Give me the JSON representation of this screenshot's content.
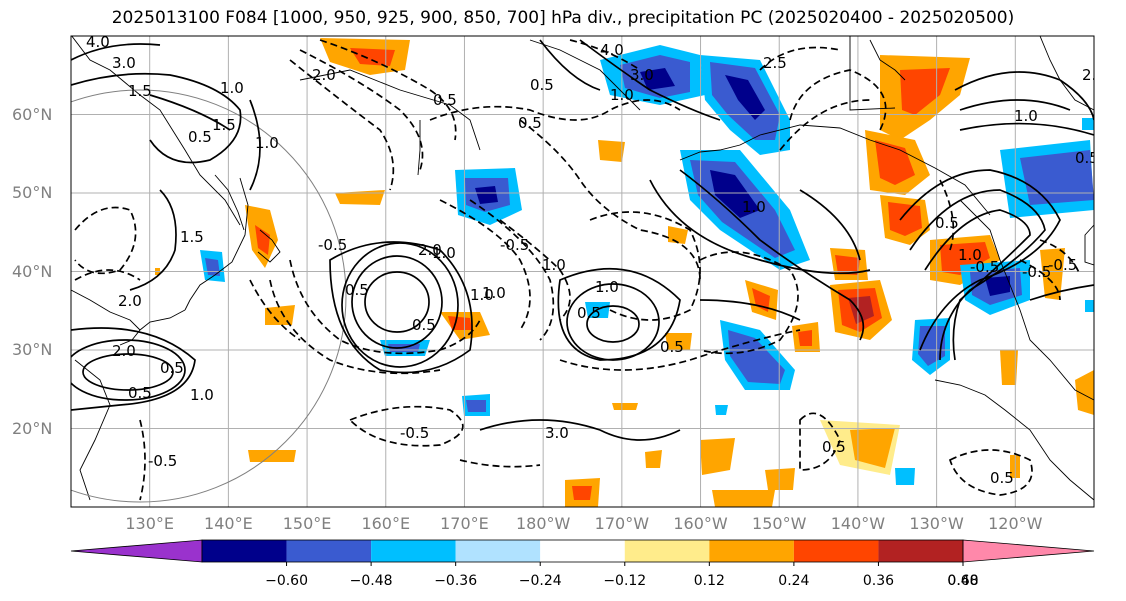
{
  "title": "2025013100 F084 [1000, 950, 925, 900, 850, 700] hPa div., precipitation PC (2025020400 - 2025020500)",
  "map": {
    "lon_range_deg_east": [
      120,
      250
    ],
    "lat_range_deg": [
      10,
      70
    ],
    "lat_labels": [
      "20°N",
      "30°N",
      "40°N",
      "50°N",
      "60°N"
    ],
    "lon_labels": [
      "130°E",
      "140°E",
      "150°E",
      "160°E",
      "170°E",
      "180°W",
      "170°W",
      "160°W",
      "150°W",
      "140°W",
      "130°W",
      "120°W"
    ],
    "gridlines": true,
    "contour_labels": [
      "4.0",
      "3.0",
      "1.5",
      "2.0",
      "1.0",
      "0.5",
      "1.5",
      "1.0",
      "0.5",
      "0.5",
      "0.5",
      "3.0",
      "4.0",
      "1.0",
      "2.5",
      "1.0",
      "2.0",
      "0.5",
      "1.0",
      "0.5",
      "0.5",
      "1.0",
      "3.0",
      "1.0",
      "-0.5",
      "0.5",
      "-0.5",
      "0.5",
      "1.0",
      "0.5",
      "1.5",
      "2.0",
      "2.0",
      "1.0",
      "1.0",
      "0.5",
      "-0.5",
      "0.5",
      "-0.5",
      "-0.5",
      "-0.5",
      "1.0",
      "0.5",
      "1.0",
      "2.0",
      "0.5",
      "-0.5"
    ]
  },
  "colorbar": {
    "ticks": [
      "−0.60",
      "−0.48",
      "−0.36",
      "−0.24",
      "−0.12",
      "0.12",
      "0.24",
      "0.36",
      "0.48",
      "0.60"
    ],
    "colors": [
      "#9a32cd",
      "#00008b",
      "#3a5bd0",
      "#00bfff",
      "#b0e2ff",
      "#ffffff",
      "#ffec8b",
      "#ffa500",
      "#ff4500",
      "#b22222",
      "#ff88aa"
    ]
  }
}
